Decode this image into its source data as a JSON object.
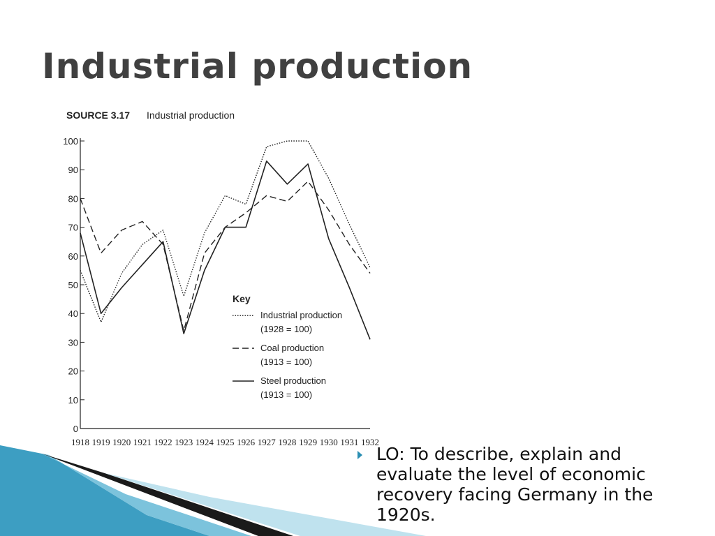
{
  "slide": {
    "title": "Industrial production",
    "bullet": "LO: To describe, explain and evaluate the level of economic recovery facing Germany in the 1920s."
  },
  "colors": {
    "accent": "#2b8fb3",
    "title": "#404040",
    "chart_ink": "#222222"
  },
  "chart_data": {
    "type": "line",
    "source_label": "SOURCE 3.17",
    "title": "Industrial production",
    "ylim": [
      0,
      100
    ],
    "yticks": [
      0,
      10,
      20,
      30,
      40,
      50,
      60,
      70,
      80,
      90,
      100
    ],
    "x": [
      "1918",
      "1919",
      "1920",
      "1921",
      "1922",
      "1923",
      "1924",
      "1925",
      "1926",
      "1927",
      "1928",
      "1929",
      "1930",
      "1931",
      "1932"
    ],
    "legend_title": "Key",
    "series": [
      {
        "name": "Industrial production",
        "sub": "(1928 = 100)",
        "style": "dotted",
        "values": [
          55,
          37,
          54,
          64,
          69,
          46,
          68,
          81,
          78,
          98,
          100,
          100,
          87,
          71,
          56
        ]
      },
      {
        "name": "Coal production",
        "sub": "(1913 = 100)",
        "style": "dashed",
        "values": [
          80,
          61,
          69,
          72,
          64,
          34,
          61,
          70,
          75,
          81,
          79,
          86,
          76,
          64,
          54
        ]
      },
      {
        "name": "Steel production",
        "sub": "(1913 = 100)",
        "style": "solid",
        "values": [
          68,
          40,
          49,
          57,
          65,
          33,
          55,
          70,
          70,
          93,
          85,
          92,
          66,
          49,
          31
        ]
      }
    ]
  }
}
